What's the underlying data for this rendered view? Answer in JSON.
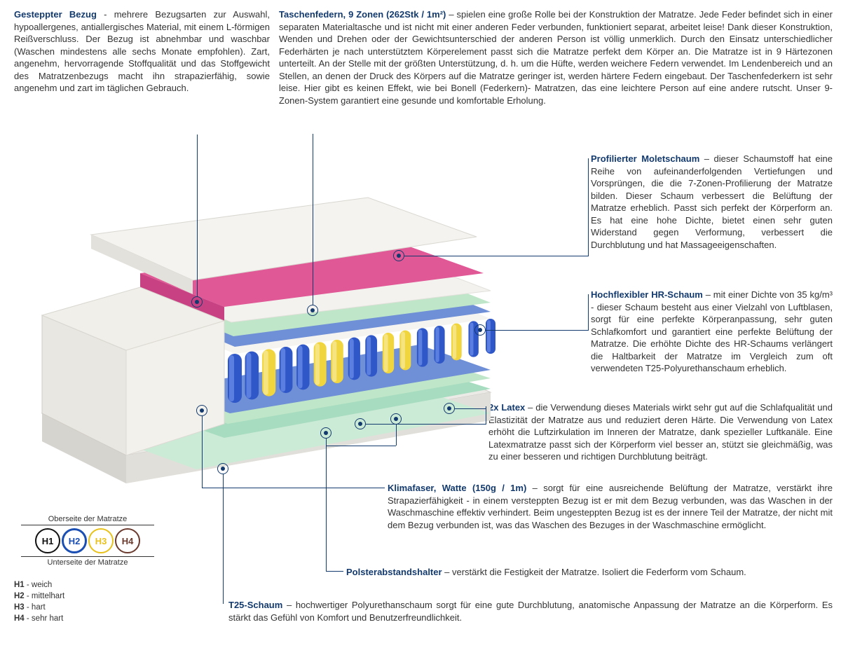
{
  "colors": {
    "title": "#133a6e",
    "text": "#333333",
    "line": "#133a6e",
    "h1_border": "#111111",
    "h2_border": "#1b4fb3",
    "h3_border": "#e8c21a",
    "h4_border": "#6b3a2e"
  },
  "blocks": {
    "bezug": {
      "title": "Gesteppter Bezug",
      "body": " - mehrere Bezugsarten zur Auswahl, hypoallergenes, antiallergisches Material, mit einem L-förmigen Reißverschluss. Der Bezug ist abnehmbar  und waschbar (Waschen mindestens alle sechs Monate empfohlen). Zart, angenehm, hervorragende Stoffqualität und das Stoffgewicht des Matratzenbezugs macht ihn strapazierfähig, sowie angenehm und zart im täglichen Gebrauch."
    },
    "federn": {
      "title": "Taschenfedern, 9 Zonen (262Stk / 1m²)",
      "body": " –  spielen eine große Rolle bei der Konstruktion der Matratze. Jede Feder befindet sich in einer separaten Materialtasche und ist nicht mit einer anderen Feder verbunden, funktioniert separat, arbeitet leise! Dank dieser Konstruktion, Wenden und Drehen oder der Gewichtsunterschied der anderen Person ist völlig unmerklich. Durch den Einsatz unterschiedlicher Federhärten je nach unterstütztem Körperelement passt sich die Matratze perfekt dem Körper an. Die Matratze ist in 9 Härtezonen unterteilt. An der Stelle mit der größten Unterstützung, d. h. um die Hüfte, werden weichere Federn verwendet. Im Lendenbereich und an Stellen, an denen der Druck des Körpers auf die Matratze geringer ist, werden härtere Federn eingebaut. Der Taschenfederkern ist sehr leise. Hier gibt es keinen Effekt, wie bei Bonell (Federkern)- Matratzen, das eine leichtere Person auf eine andere rutscht. Unser 9-Zonen-System garantiert eine gesunde und komfortable Erholung."
    },
    "molet": {
      "title": "Profilierter Moletschaum",
      "body": " –  dieser Schaumstoff hat eine Reihe von aufeinanderfolgenden Vertiefungen und Vorsprüngen, die die 7-Zonen-Profilierung der Matratze bilden. Dieser Schaum verbessert die Belüftung der Matratze erheblich. Passt sich perfekt der Körperform an. Es hat eine hohe Dichte, bietet einen sehr guten Widerstand gegen Verformung, verbessert die Durchblutung und hat Massageeigenschaften."
    },
    "hr": {
      "title": "Hochflexibler HR-Schaum",
      "body": " –  mit einer Dichte von 35 kg/m³ - dieser Schaum besteht aus einer Vielzahl von Luftblasen, sorgt für eine perfekte Körperanpassung, sehr guten Schlafkomfort und garantiert eine perfekte Belüftung der Matratze. Die erhöhte Dichte des HR-Schaums verlängert die Haltbarkeit der Matratze im Vergleich zum oft verwendeten T25-Polyurethanschaum erheblich."
    },
    "latex": {
      "title": "2x Latex",
      "body": " –  die Verwendung dieses Materials wirkt sehr gut auf die Schlafqualität und Elastizität der Matratze aus und reduziert deren Härte. Die Verwendung von Latex erhöht die Luftzirkulation im Inneren der Matratze, dank spezieller Luftkanäle. Eine Latexmatratze passt sich der Körperform viel besser an, stützt sie gleichmäßig, was zu einer besseren und richtigen Durchblutung beiträgt."
    },
    "klima": {
      "title": "Klimafaser, Watte (150g / 1m)",
      "body": " –  sorgt für eine ausreichende Belüftung der Matratze, verstärkt ihre Strapazierfähigkeit - in einem versteppten Bezug ist er mit dem Bezug verbunden, was das Waschen in der Waschmaschine effektiv verhindert. Beim ungesteppten Bezug ist es der innere Teil der Matratze, der nicht mit dem Bezug verbunden ist, was das Waschen des Bezuges in der Waschmaschine ermöglicht."
    },
    "polster": {
      "title": "Polsterabstandshalter",
      "body": " –  verstärkt die Festigkeit der Matratze. Isoliert die Federform vom Schaum."
    },
    "t25": {
      "title": "T25-Schaum",
      "body": " –  hochwertiger Polyurethanschaum sorgt für eine gute Durchblutung, anatomische Anpassung der Matratze an die Körperform. Es stärkt das Gefühl von Komfort und Benutzerfreundlichkeit."
    }
  },
  "legend": {
    "top": "Oberseite der Matratze",
    "bottom": "Unterseite der Matratze",
    "items": [
      {
        "code": "H1",
        "color": "#111111",
        "selected": false
      },
      {
        "code": "H2",
        "color": "#1b4fb3",
        "selected": true
      },
      {
        "code": "H3",
        "color": "#e8c21a",
        "selected": false
      },
      {
        "code": "H4",
        "color": "#6b3a2e",
        "selected": false
      }
    ],
    "keys": [
      {
        "code": "H1",
        "label": " - weich"
      },
      {
        "code": "H2",
        "label": " - mittelhart"
      },
      {
        "code": "H3",
        "label": " - hart"
      },
      {
        "code": "H4",
        "label": " - sehr hart"
      }
    ]
  },
  "mattress_svg": {
    "cover": "#eceae7",
    "cover_shadow": "#d6d4cf",
    "side": "#e4e2de",
    "foam_pink": "#e15896",
    "foam_pink_light": "#f07db1",
    "foam_white": "#f3f2ef",
    "latex_green": "#bfe6c8",
    "hr_green": "#a7dcc0",
    "t25_green": "#ccebd7",
    "pad_blue": "#6f8fd6",
    "spring_blue": "#2f57c7",
    "spring_blue_light": "#5a7fe0",
    "spring_yellow": "#f0d53f",
    "spring_yellow_light": "#f6e480",
    "edge": "#b9b7b2"
  }
}
